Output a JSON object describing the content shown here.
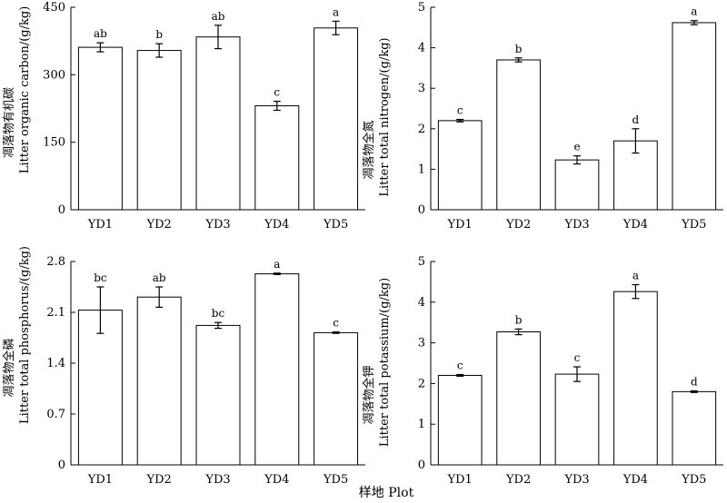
{
  "figure": {
    "x_caption": "样地  Plot"
  },
  "chart_data": [
    {
      "type": "bar",
      "ylabel_cn": "凋落物有机碳",
      "ylabel_en": "Litter organic carbon/(g/kg)",
      "categories": [
        "YD1",
        "YD2",
        "YD3",
        "YD4",
        "YD5"
      ],
      "values": [
        361,
        354,
        384,
        231,
        404
      ],
      "errors": [
        10,
        15,
        26,
        10,
        15
      ],
      "labels": [
        "ab",
        "b",
        "ab",
        "c",
        "a"
      ],
      "ylim": [
        0,
        450
      ],
      "yticks": [
        "0",
        "150",
        "300",
        "450"
      ]
    },
    {
      "type": "bar",
      "ylabel_cn": "凋落物全氮",
      "ylabel_en": "Litter total nitrogen/(g/kg)",
      "categories": [
        "YD1",
        "YD2",
        "YD3",
        "YD4",
        "YD5"
      ],
      "values": [
        2.2,
        3.7,
        1.23,
        1.7,
        4.62
      ],
      "errors": [
        0.03,
        0.05,
        0.1,
        0.3,
        0.05
      ],
      "labels": [
        "c",
        "b",
        "e",
        "d",
        "a"
      ],
      "ylim": [
        0,
        5
      ],
      "yticks": [
        "0",
        "1",
        "2",
        "3",
        "4",
        "5"
      ]
    },
    {
      "type": "bar",
      "ylabel_cn": "凋落物全磷",
      "ylabel_en": "Litter total phosphorus/(g/kg)",
      "categories": [
        "YD1",
        "YD2",
        "YD3",
        "YD4",
        "YD5"
      ],
      "values": [
        2.13,
        2.31,
        1.92,
        2.63,
        1.82
      ],
      "errors": [
        0.32,
        0.14,
        0.04,
        0.01,
        0.01
      ],
      "labels": [
        "bc",
        "ab",
        "bc",
        "a",
        "c"
      ],
      "ylim": [
        0,
        2.8
      ],
      "yticks": [
        "0",
        "0.7",
        "1.4",
        "2.1",
        "2.8"
      ]
    },
    {
      "type": "bar",
      "ylabel_cn": "凋落物全钾",
      "ylabel_en": "Litter total potassium/(g/kg)",
      "categories": [
        "YD1",
        "YD2",
        "YD3",
        "YD4",
        "YD5"
      ],
      "values": [
        2.2,
        3.27,
        2.23,
        4.26,
        1.8
      ],
      "errors": [
        0.02,
        0.07,
        0.18,
        0.17,
        0.02
      ],
      "labels": [
        "c",
        "b",
        "c",
        "a",
        "d"
      ],
      "ylim": [
        0,
        5
      ],
      "yticks": [
        "0",
        "1",
        "2",
        "3",
        "4",
        "5"
      ]
    }
  ]
}
